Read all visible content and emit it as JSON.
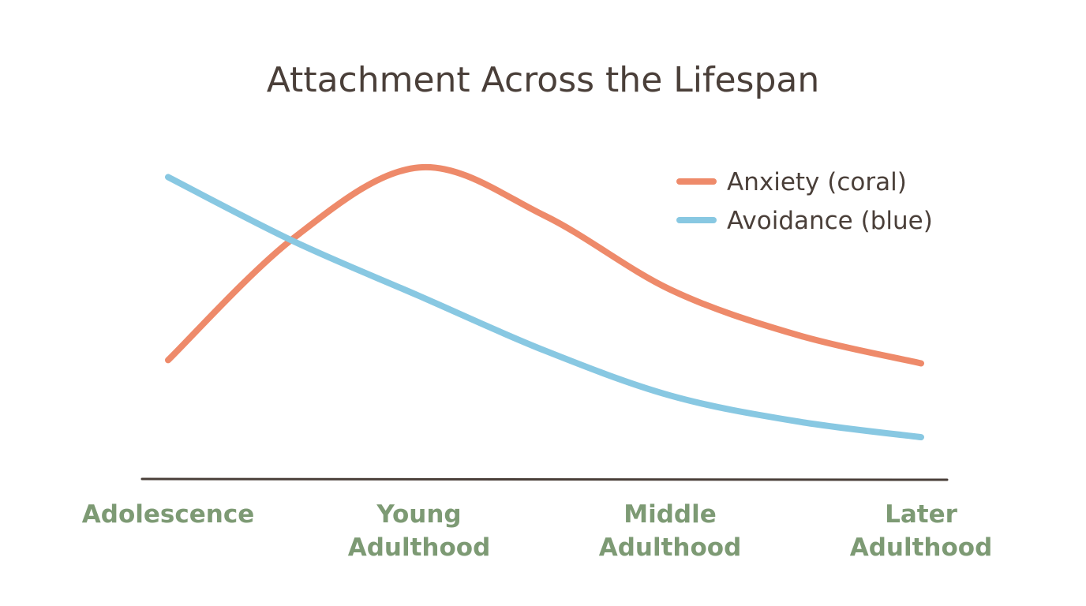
{
  "chart_data": {
    "type": "line",
    "title": "Attachment Across the Lifespan",
    "xlabel": "",
    "ylabel": "",
    "categories": [
      "Adolescence",
      "Young Adulthood",
      "Middle Adulthood",
      "Later Adulthood"
    ],
    "category_lines": [
      [
        "Adolescence"
      ],
      [
        "Young",
        "Adulthood"
      ],
      [
        "Middle",
        "Adulthood"
      ],
      [
        "Later",
        "Adulthood"
      ]
    ],
    "x": [
      0,
      0.5,
      1,
      1.5,
      2,
      2.5,
      3
    ],
    "xlim": [
      0,
      3
    ],
    "ylim": [
      0,
      100
    ],
    "grid": false,
    "legend_position": "top-right",
    "series": [
      {
        "name": "Anxiety (coral)",
        "color": "#ee8a6a",
        "values": [
          37,
          75,
          97,
          82,
          59,
          45,
          36
        ]
      },
      {
        "name": "Avoidance (blue)",
        "color": "#88c8e2",
        "values": [
          94,
          74,
          57,
          40,
          26,
          18,
          13
        ]
      }
    ]
  }
}
